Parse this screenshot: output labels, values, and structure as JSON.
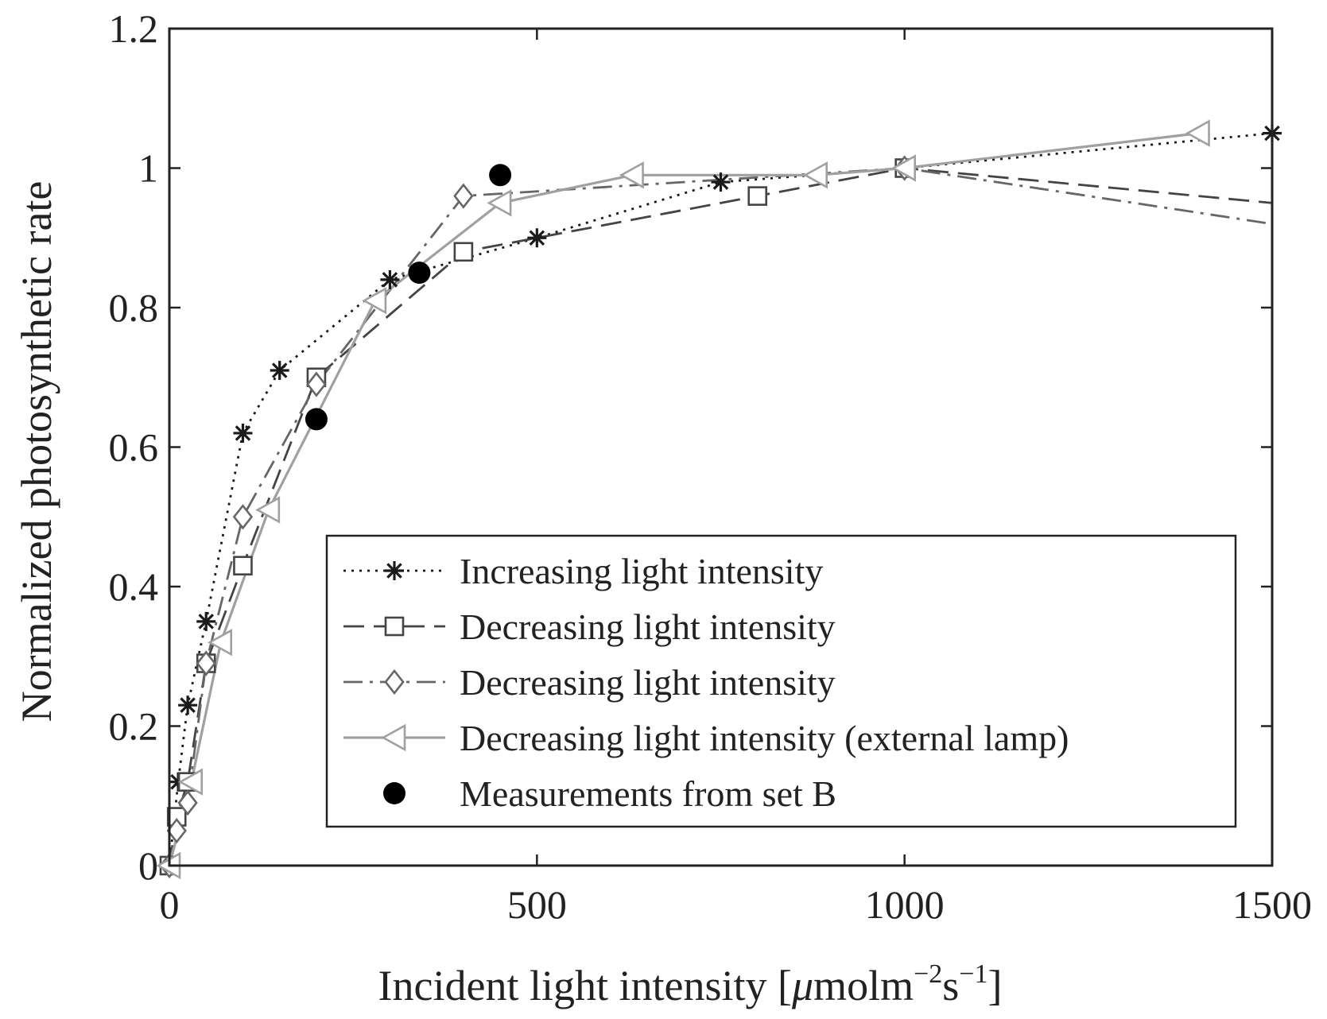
{
  "chart_data": {
    "type": "line",
    "title": "",
    "xlabel": "Incident light intensity [μmolm⁻²s⁻¹]",
    "xlabel_parts": {
      "main": "Incident light intensity [",
      "mu": "μ",
      "unit": "molm",
      "exp1": "−2",
      "s": "s",
      "exp2": "−1",
      "close": "]"
    },
    "ylabel": "Normalized photosynthetic rate",
    "xlim": [
      0,
      1500
    ],
    "ylim": [
      0,
      1.2
    ],
    "xticks": [
      0,
      500,
      1000,
      1500
    ],
    "xtick_labels": [
      "0",
      "500",
      "1000",
      "1500"
    ],
    "yticks": [
      0,
      0.2,
      0.4,
      0.6,
      0.8,
      1.0,
      1.2
    ],
    "ytick_labels": [
      "0",
      "0.2",
      "0.4",
      "0.6",
      "0.8",
      "1",
      "1.2"
    ],
    "grid": false,
    "legend_position": "bottom-right",
    "series": [
      {
        "name": "Increasing light intensity",
        "marker": "asterisk",
        "line": "dotted",
        "color": "#1a1a1a",
        "x": [
          0,
          12,
          25,
          50,
          100,
          150,
          300,
          500,
          750,
          1000,
          1500
        ],
        "y": [
          0,
          0.12,
          0.23,
          0.35,
          0.62,
          0.71,
          0.84,
          0.9,
          0.98,
          1.0,
          1.05
        ]
      },
      {
        "name": "Decreasing light intensity",
        "marker": "square",
        "line": "dashed",
        "color": "#444444",
        "x": [
          0,
          10,
          25,
          50,
          100,
          200,
          400,
          800,
          1000,
          1500
        ],
        "y": [
          0,
          0.07,
          0.12,
          0.29,
          0.43,
          0.7,
          0.88,
          0.96,
          1.0,
          0.95
        ],
        "markers_shown": [
          true,
          true,
          true,
          true,
          true,
          true,
          true,
          true,
          true,
          false
        ]
      },
      {
        "name": "Decreasing light intensity",
        "marker": "diamond",
        "line": "dashdot",
        "color": "#666666",
        "x": [
          0,
          10,
          25,
          50,
          100,
          200,
          400,
          1000,
          1500
        ],
        "y": [
          0,
          0.05,
          0.09,
          0.29,
          0.5,
          0.69,
          0.96,
          1.0,
          0.92
        ],
        "markers_shown": [
          true,
          true,
          true,
          true,
          true,
          true,
          true,
          true,
          false
        ]
      },
      {
        "name": "Decreasing light intensity (external lamp)",
        "marker": "triangle-left",
        "line": "solid",
        "color": "#a0a0a0",
        "x": [
          0,
          30,
          70,
          135,
          280,
          450,
          630,
          880,
          1000,
          1400
        ],
        "y": [
          0,
          0.12,
          0.32,
          0.51,
          0.81,
          0.95,
          0.99,
          0.99,
          1.0,
          1.05
        ]
      },
      {
        "name": "Measurements from set B",
        "marker": "filled-circle",
        "line": "none",
        "color": "#000000",
        "x": [
          200,
          340,
          450
        ],
        "y": [
          0.64,
          0.85,
          0.99
        ]
      }
    ]
  }
}
